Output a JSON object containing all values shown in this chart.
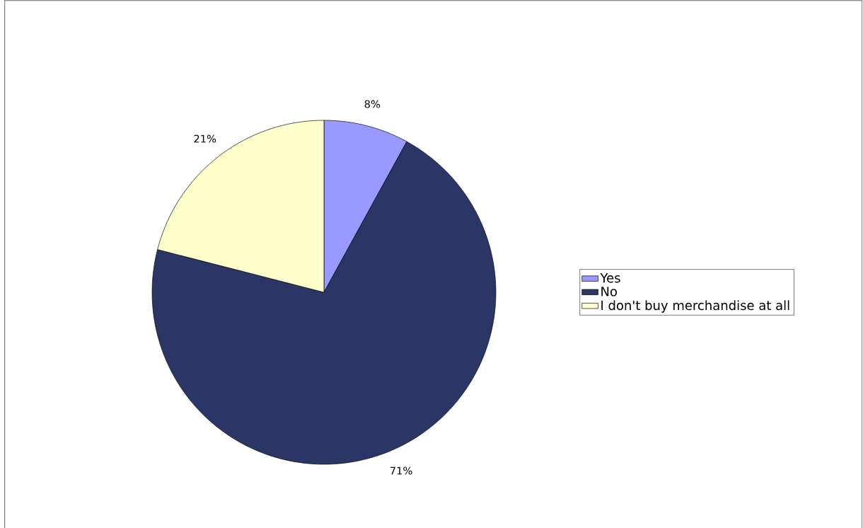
{
  "chart_data": {
    "type": "pie",
    "categories": [
      "Yes",
      "No",
      "I don't buy merchandise at all"
    ],
    "values": [
      8,
      71,
      21
    ],
    "colors": [
      "#9999ff",
      "#2b3566",
      "#ffffcc"
    ],
    "value_labels": [
      "8%",
      "71%",
      "21%"
    ],
    "legend": "right"
  }
}
